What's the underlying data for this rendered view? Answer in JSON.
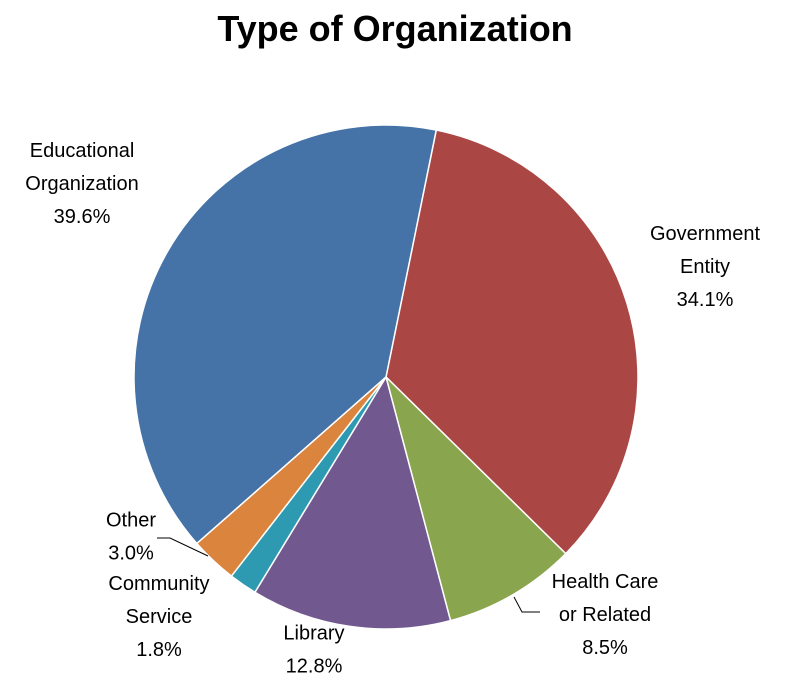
{
  "chart_data": {
    "type": "pie",
    "title": "Type of Organization",
    "slices": [
      {
        "label": "Government Entity",
        "label_lines": [
          "Government",
          "Entity"
        ],
        "value_text": "34.1%",
        "value": 34.1,
        "color": "#AA4643"
      },
      {
        "label": "Health Care or Related",
        "label_lines": [
          "Health Care",
          "or Related"
        ],
        "value_text": "8.5%",
        "value": 8.5,
        "color": "#89A54E"
      },
      {
        "label": "Library",
        "label_lines": [
          "Library"
        ],
        "value_text": "12.8%",
        "value": 12.8,
        "color": "#71588F"
      },
      {
        "label": "Community Service",
        "label_lines": [
          "Community",
          "Service"
        ],
        "value_text": "1.8%",
        "value": 1.8,
        "color": "#2E9AB2"
      },
      {
        "label": "Other",
        "label_lines": [
          "Other"
        ],
        "value_text": "3.0%",
        "value": 3.0,
        "color": "#DB843D"
      },
      {
        "label": "Educational Organization",
        "label_lines": [
          "Educational",
          "Organization"
        ],
        "value_text": "39.6%",
        "value": 39.6,
        "color": "#4572A7"
      }
    ],
    "start_angle_deg": 11.5,
    "direction": "clockwise",
    "legend": "none",
    "data_labels": "outside"
  }
}
